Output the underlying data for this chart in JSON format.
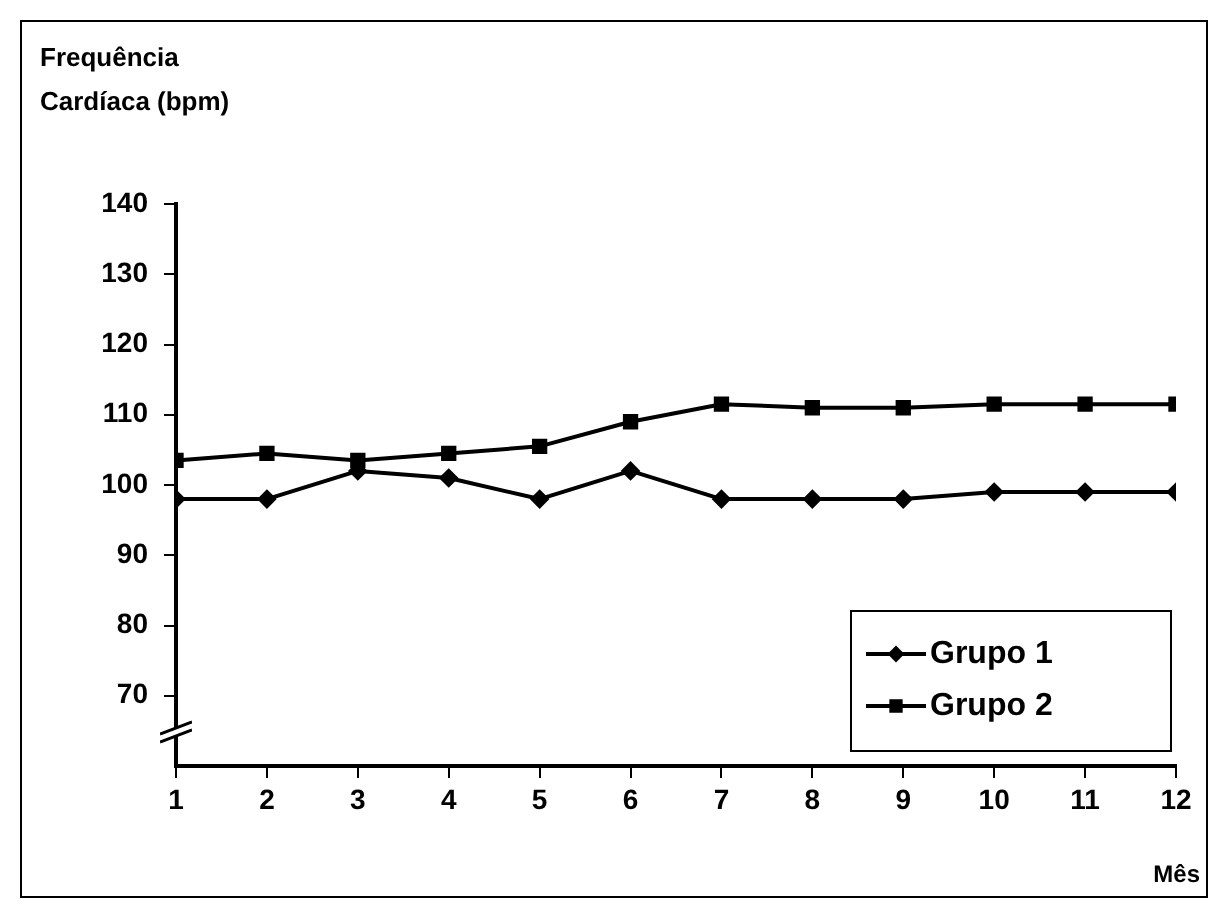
{
  "chart_data": {
    "type": "line",
    "ylabel": "Frequência Cardíaca (bpm)",
    "xlabel": "Mês",
    "x": [
      1,
      2,
      3,
      4,
      5,
      6,
      7,
      8,
      9,
      10,
      11,
      12
    ],
    "xlim": [
      1,
      12
    ],
    "xticks": [
      1,
      2,
      3,
      4,
      5,
      6,
      7,
      8,
      9,
      10,
      11,
      12
    ],
    "ylim": [
      60,
      140
    ],
    "yticks": [
      70,
      80,
      90,
      100,
      110,
      120,
      130,
      140
    ],
    "legend": "bottom right",
    "series": [
      {
        "name": "Grupo 1",
        "color": "#000000",
        "marker": "diamond",
        "values": [
          98,
          98,
          102,
          101,
          98,
          102,
          98,
          98,
          98,
          99,
          99,
          99
        ]
      },
      {
        "name": "Grupo 2",
        "color": "#000000",
        "marker": "square",
        "values": [
          103.5,
          104.5,
          103.5,
          104.5,
          105.5,
          109,
          111.5,
          111,
          111,
          111.5,
          111.5,
          111.5
        ]
      }
    ]
  }
}
